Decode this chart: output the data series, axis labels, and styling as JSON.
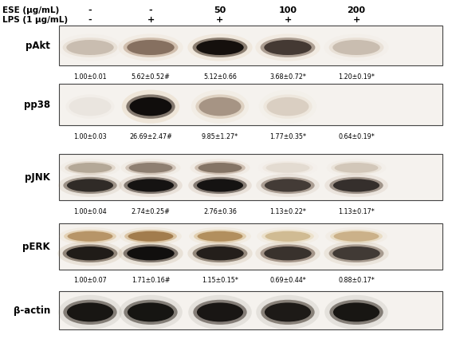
{
  "ese_label": "ESE (μg/mL)",
  "lps_label": "LPS (1 μg/mL)",
  "ese_values": [
    "-",
    "-",
    "50",
    "100",
    "200"
  ],
  "lps_values": [
    "-",
    "+",
    "+",
    "+",
    "+"
  ],
  "row_labels": [
    "pAkt",
    "pp38",
    "pJNK",
    "pERK",
    "β-actin"
  ],
  "stats_display": {
    "pAkt": [
      "1.00±0.01",
      "5.62±0.52#",
      "5.12±0.66",
      "3.68±0.72*",
      "1.20±0.19*"
    ],
    "pp38": [
      "1.00±0.03",
      "26.69±2.47#",
      "9.85±1.27*",
      "1.77±0.35*",
      "0.64±0.19*"
    ],
    "pJNK": [
      "1.00±0.04",
      "2.74±0.25#",
      "2.76±0.36",
      "1.13±0.22*",
      "1.13±0.17*"
    ],
    "pERK": [
      "1.00±0.07",
      "1.71±0.16#",
      "1.15±0.15*",
      "0.69±0.44*",
      "0.88±0.17*"
    ]
  },
  "bg_color": "#ffffff"
}
